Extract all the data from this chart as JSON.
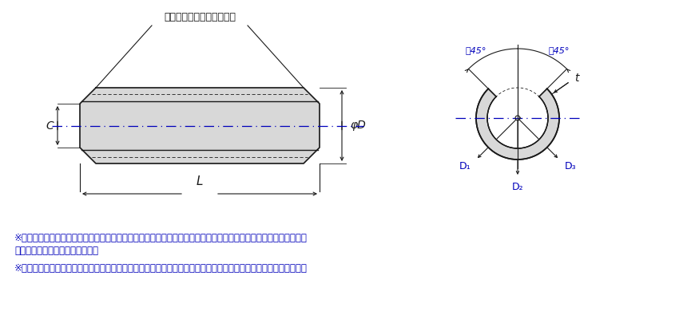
{
  "bg_color": "#ffffff",
  "line_color": "#1a1a1a",
  "blue_color": "#0000bb",
  "note_color": "#0000bb",
  "fill_color": "#d8d8d8",
  "chamfer_label": "面取りの形状は任意とする",
  "label_C": "C",
  "label_phiD": "φD",
  "label_L": "L",
  "label_t": "t",
  "label_D1": "D₁",
  "label_D2": "D₂",
  "label_D3": "D₃",
  "label_45L": "素45°",
  "label_45R": "素45°",
  "note1_line1": "※１　すきまＣは、スプリングピンを適用する穴に挿入したとき、辺が接触しないような寸法でなければならない。",
  "note1_line2": "　　　（但し、両端部を除く。）",
  "note2": "※２　Ｄの最大寸法はピンの円周上における最大値とし、Ｄの最少寸法は　　（Ｄ１＋Ｄ２＋Ｄ３）／３　とする。"
}
